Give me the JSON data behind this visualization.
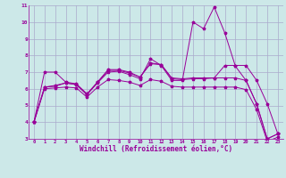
{
  "xlabel": "Windchill (Refroidissement éolien,°C)",
  "ylabel": "",
  "background_color": "#cce8e8",
  "grid_color": "#aaaacc",
  "line_color": "#990099",
  "xlim": [
    -0.5,
    23.5
  ],
  "ylim": [
    3,
    11
  ],
  "yticks": [
    3,
    4,
    5,
    6,
    7,
    8,
    9,
    10,
    11
  ],
  "x": [
    0,
    1,
    2,
    3,
    4,
    5,
    6,
    7,
    8,
    9,
    10,
    11,
    12,
    13,
    14,
    15,
    16,
    17,
    18,
    19,
    20,
    21,
    22,
    23
  ],
  "series1": [
    4.0,
    6.1,
    6.2,
    6.35,
    6.25,
    5.65,
    6.4,
    7.1,
    7.1,
    6.95,
    6.7,
    7.55,
    7.45,
    6.6,
    6.55,
    6.6,
    6.6,
    6.65,
    7.4,
    7.4,
    7.4,
    6.5,
    5.1,
    3.3
  ],
  "series2": [
    4.0,
    6.1,
    6.15,
    6.35,
    6.25,
    5.65,
    6.35,
    7.0,
    7.05,
    6.85,
    6.6,
    7.8,
    7.4,
    6.5,
    6.5,
    10.0,
    9.6,
    10.9,
    9.35,
    7.35,
    6.5,
    5.1,
    3.0,
    3.3
  ],
  "series3": [
    4.0,
    7.0,
    7.0,
    6.4,
    6.3,
    5.7,
    6.4,
    7.15,
    7.15,
    7.0,
    6.7,
    7.5,
    7.45,
    6.65,
    6.6,
    6.65,
    6.65,
    6.65,
    6.65,
    6.65,
    6.5,
    5.1,
    3.0,
    3.3
  ],
  "series4": [
    4.0,
    6.0,
    6.05,
    6.1,
    6.05,
    5.5,
    6.1,
    6.55,
    6.5,
    6.4,
    6.2,
    6.55,
    6.45,
    6.15,
    6.1,
    6.1,
    6.1,
    6.1,
    6.1,
    6.1,
    5.95,
    4.75,
    2.85,
    3.1
  ]
}
